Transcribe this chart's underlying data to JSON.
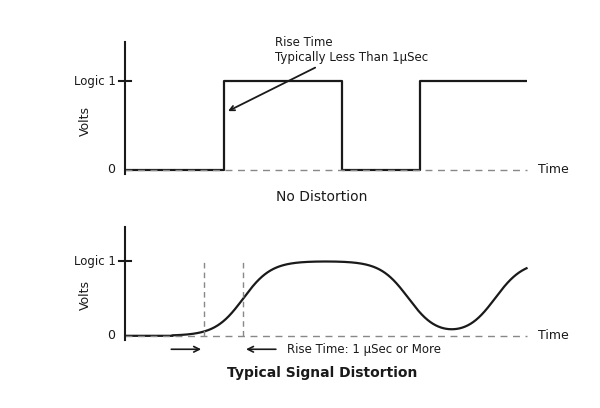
{
  "title_top": "No Distortion",
  "title_bottom": "Typical Signal Distortion",
  "ylabel": "Volts",
  "xlabel": "Time",
  "logic1_label": "Logic 1",
  "zero_label": "0",
  "annotation_top_line1": "Rise Time",
  "annotation_top_line2": "Typically Less Than 1μSec",
  "annotation_bottom": "Rise Time: 1 μSec or More",
  "bg_color": "#ffffff",
  "line_color": "#1a1a1a",
  "dashed_color": "#888888"
}
